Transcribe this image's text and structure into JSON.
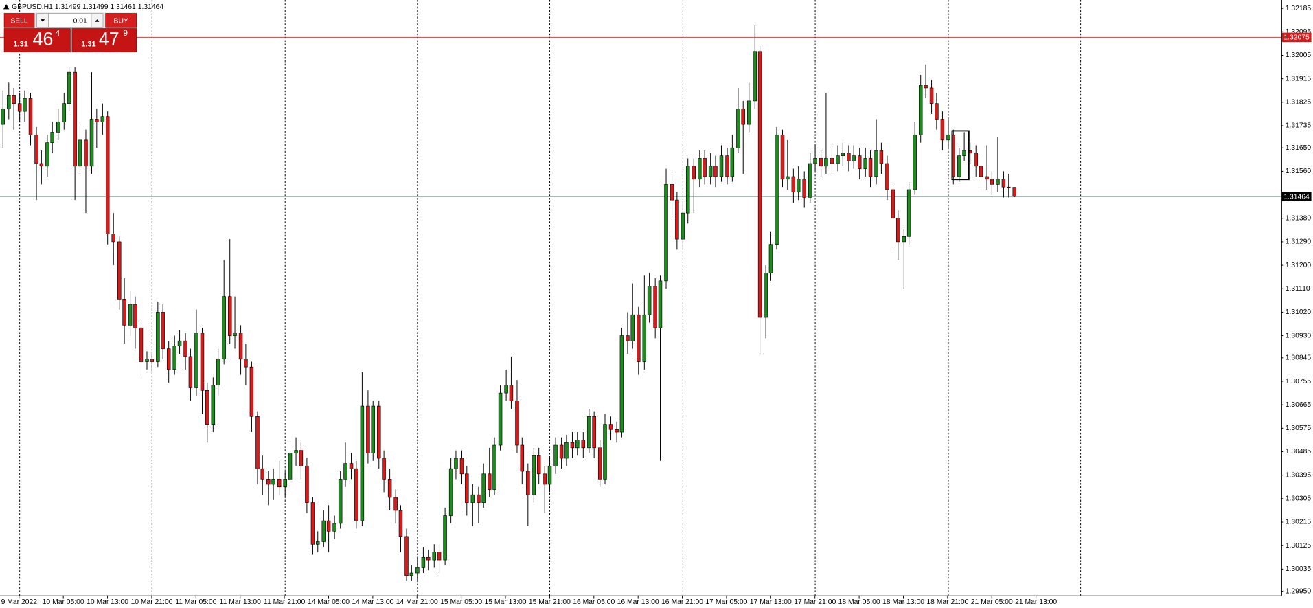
{
  "chart_data": {
    "type": "candlestick",
    "title": "GBPUSD,H1  1.31499 1.31499 1.31461 1.31464",
    "up_color": "#1f8a1f",
    "down_color": "#d41c1c",
    "outline_color": "#000000",
    "series": [
      {
        "name": "GBPUSD,H1",
        "open": [
          1.3174,
          1.318,
          1.3185,
          1.3182,
          1.3179,
          1.3184,
          1.317,
          1.3159,
          1.3158,
          1.3167,
          1.3171,
          1.3175,
          1.3182,
          1.3194,
          1.3158,
          1.3168,
          1.3158,
          1.3176,
          1.3175,
          1.3177,
          1.3132,
          1.3129,
          1.3107,
          1.3097,
          1.3105,
          1.3096,
          1.3083,
          1.3084,
          1.3083,
          1.3102,
          1.3088,
          1.308,
          1.3089,
          1.3091,
          1.3085,
          1.3073,
          1.3094,
          1.3072,
          1.3059,
          1.3074,
          1.3084,
          1.3108,
          1.3093,
          1.3094,
          1.3084,
          1.3081,
          1.3062,
          1.3042,
          1.3038,
          1.3036,
          1.3038,
          1.3035,
          1.3038,
          1.3048,
          1.3049,
          1.3043,
          1.3029,
          1.3013,
          1.3014,
          1.3022,
          1.3018,
          1.3021,
          1.3038,
          1.3044,
          1.3042,
          1.3022,
          1.3066,
          1.3048,
          1.3066,
          1.3046,
          1.3038,
          1.3031,
          1.3026,
          1.3016,
          1.3001,
          1.3002,
          1.3004,
          1.3008,
          1.3007,
          1.301,
          1.3007,
          1.3024,
          1.3042,
          1.3046,
          1.304,
          1.3029,
          1.3032,
          1.3029,
          1.304,
          1.3034,
          1.3051,
          1.3071,
          1.3074,
          1.3068,
          1.3051,
          1.3041,
          1.3032,
          1.3047,
          1.304,
          1.3036,
          1.3043,
          1.3051,
          1.3046,
          1.3052,
          1.305,
          1.3053,
          1.305,
          1.3062,
          1.305,
          1.3038,
          1.3059,
          1.3057,
          1.3056,
          1.3093,
          1.3091,
          1.3101,
          1.3083,
          1.3101,
          1.3112,
          1.3096,
          1.3114,
          1.3151,
          1.3145,
          1.313,
          1.314,
          1.3158,
          1.3153,
          1.3161,
          1.3154,
          1.3158,
          1.3154,
          1.3162,
          1.3154,
          1.3165,
          1.318,
          1.3174,
          1.3183,
          1.3202,
          1.31,
          1.3117,
          1.3128,
          1.317,
          1.3153,
          1.3154,
          1.3148,
          1.3153,
          1.3146,
          1.3159,
          1.3161,
          1.3158,
          1.3161,
          1.3159,
          1.3162,
          1.3163,
          1.316,
          1.3162,
          1.3157,
          1.3161,
          1.3154,
          1.3164,
          1.3159,
          1.3149,
          1.3138,
          1.3129,
          1.3131,
          1.3149,
          1.317,
          1.3189,
          1.3188,
          1.3182,
          1.3176,
          1.3168,
          1.317,
          1.3154,
          1.3162,
          1.3164,
          1.3163,
          1.3158,
          1.3154,
          1.3153,
          1.3151,
          1.3153,
          1.315,
          1.31499
        ],
        "high": [
          1.3187,
          1.319,
          1.3188,
          1.3186,
          1.3187,
          1.3186,
          1.3173,
          1.3164,
          1.317,
          1.3175,
          1.318,
          1.3186,
          1.3196,
          1.3196,
          1.3175,
          1.3172,
          1.3194,
          1.318,
          1.3182,
          1.3179,
          1.314,
          1.3131,
          1.3115,
          1.311,
          1.3108,
          1.3098,
          1.3087,
          1.3086,
          1.3106,
          1.3105,
          1.3091,
          1.3093,
          1.3095,
          1.3094,
          1.3088,
          1.3103,
          1.3096,
          1.3075,
          1.3077,
          1.3088,
          1.3122,
          1.313,
          1.3108,
          1.3097,
          1.309,
          1.3083,
          1.3064,
          1.3047,
          1.3041,
          1.3042,
          1.3045,
          1.3041,
          1.3052,
          1.3054,
          1.3052,
          1.3046,
          1.3031,
          1.3018,
          1.3026,
          1.3028,
          1.3024,
          1.3041,
          1.3052,
          1.3048,
          1.3045,
          1.3079,
          1.3072,
          1.3068,
          1.3068,
          1.3049,
          1.3042,
          1.3034,
          1.3028,
          1.3019,
          1.3005,
          1.3008,
          1.3012,
          1.3011,
          1.3013,
          1.3013,
          1.3027,
          1.3046,
          1.3049,
          1.3049,
          1.3043,
          1.3036,
          1.3035,
          1.3044,
          1.305,
          1.3054,
          1.3074,
          1.308,
          1.3085,
          1.3076,
          1.3054,
          1.3044,
          1.305,
          1.305,
          1.3043,
          1.3046,
          1.3054,
          1.3054,
          1.3055,
          1.3056,
          1.3056,
          1.3056,
          1.3065,
          1.3064,
          1.3053,
          1.3063,
          1.3062,
          1.306,
          1.3096,
          1.3102,
          1.3113,
          1.3104,
          1.3116,
          1.3117,
          1.3115,
          1.3116,
          1.3157,
          1.3155,
          1.3148,
          1.3144,
          1.3161,
          1.3161,
          1.3164,
          1.3164,
          1.3163,
          1.3162,
          1.3166,
          1.3165,
          1.317,
          1.3188,
          1.3183,
          1.319,
          1.3212,
          1.3204,
          1.312,
          1.3133,
          1.3173,
          1.3172,
          1.3168,
          1.3157,
          1.3158,
          1.3156,
          1.3163,
          1.3166,
          1.3164,
          1.3186,
          1.3165,
          1.3166,
          1.3167,
          1.3166,
          1.3166,
          1.3165,
          1.3165,
          1.3164,
          1.3176,
          1.3167,
          1.3162,
          1.3152,
          1.3141,
          1.3134,
          1.3152,
          1.3175,
          1.3193,
          1.3197,
          1.3191,
          1.3186,
          1.3179,
          1.3176,
          1.3172,
          1.3165,
          1.3171,
          1.3167,
          1.3166,
          1.3161,
          1.3166,
          1.3156,
          1.3169,
          1.3156,
          1.3155,
          1.31499
        ],
        "low": [
          1.3165,
          1.3176,
          1.3172,
          1.3175,
          1.3175,
          1.3166,
          1.3145,
          1.3151,
          1.3154,
          1.3163,
          1.3168,
          1.3172,
          1.3179,
          1.3145,
          1.3155,
          1.314,
          1.3155,
          1.3165,
          1.317,
          1.3128,
          1.312,
          1.3103,
          1.309,
          1.3093,
          1.3088,
          1.3078,
          1.308,
          1.3079,
          1.3081,
          1.3084,
          1.3075,
          1.3078,
          1.3086,
          1.308,
          1.3068,
          1.307,
          1.3063,
          1.3052,
          1.3056,
          1.307,
          1.3082,
          1.309,
          1.3088,
          1.3078,
          1.3074,
          1.3056,
          1.3036,
          1.3032,
          1.3028,
          1.303,
          1.3032,
          1.3031,
          1.3034,
          1.3043,
          1.3038,
          1.3025,
          1.3009,
          1.301,
          1.3012,
          1.301,
          1.3015,
          1.3019,
          1.3035,
          1.3038,
          1.3019,
          1.302,
          1.3044,
          1.3045,
          1.3042,
          1.3033,
          1.3026,
          1.3021,
          1.301,
          1.2999,
          1.2999,
          1.2999,
          1.3002,
          1.3003,
          1.3004,
          1.3002,
          1.3005,
          1.3021,
          1.3038,
          1.3036,
          1.3024,
          1.302,
          1.3021,
          1.3027,
          1.3031,
          1.3032,
          1.3049,
          1.3068,
          1.3065,
          1.3048,
          1.3036,
          1.302,
          1.3029,
          1.3036,
          1.3025,
          1.3033,
          1.304,
          1.3042,
          1.3043,
          1.3046,
          1.3047,
          1.3046,
          1.3048,
          1.3046,
          1.3035,
          1.3036,
          1.3053,
          1.3052,
          1.3054,
          1.3086,
          1.3088,
          1.3078,
          1.308,
          1.3098,
          1.3092,
          1.3045,
          1.3111,
          1.3138,
          1.3126,
          1.3126,
          1.3136,
          1.314,
          1.315,
          1.3151,
          1.3151,
          1.315,
          1.3152,
          1.3151,
          1.3152,
          1.3163,
          1.3155,
          1.3171,
          1.318,
          1.3086,
          1.3092,
          1.3114,
          1.3126,
          1.315,
          1.3149,
          1.3144,
          1.3145,
          1.3142,
          1.3144,
          1.3156,
          1.3154,
          1.3155,
          1.3155,
          1.3156,
          1.3158,
          1.3156,
          1.3157,
          1.3153,
          1.3154,
          1.315,
          1.3151,
          1.3155,
          1.3145,
          1.3126,
          1.3122,
          1.3111,
          1.3128,
          1.3147,
          1.3167,
          1.3184,
          1.3178,
          1.3172,
          1.3164,
          1.3165,
          1.3151,
          1.3152,
          1.316,
          1.3159,
          1.3154,
          1.315,
          1.3149,
          1.3147,
          1.3148,
          1.3146,
          1.3146,
          1.31461
        ],
        "close": [
          1.318,
          1.3185,
          1.3182,
          1.3179,
          1.3184,
          1.317,
          1.3159,
          1.3158,
          1.3167,
          1.3171,
          1.3175,
          1.3182,
          1.3194,
          1.3158,
          1.3168,
          1.3158,
          1.3176,
          1.3175,
          1.3177,
          1.3132,
          1.3129,
          1.3107,
          1.3097,
          1.3105,
          1.3096,
          1.3083,
          1.3084,
          1.3083,
          1.3102,
          1.3088,
          1.308,
          1.3089,
          1.3091,
          1.3085,
          1.3073,
          1.3094,
          1.3072,
          1.3059,
          1.3074,
          1.3084,
          1.3108,
          1.3093,
          1.3094,
          1.3084,
          1.3081,
          1.3062,
          1.3042,
          1.3038,
          1.3036,
          1.3038,
          1.3035,
          1.3038,
          1.3048,
          1.3049,
          1.3043,
          1.3029,
          1.3013,
          1.3014,
          1.3022,
          1.3018,
          1.3021,
          1.3038,
          1.3044,
          1.3042,
          1.3022,
          1.3066,
          1.3048,
          1.3066,
          1.3046,
          1.3038,
          1.3031,
          1.3026,
          1.3016,
          1.3001,
          1.3002,
          1.3004,
          1.3008,
          1.3007,
          1.301,
          1.3007,
          1.3024,
          1.3042,
          1.3046,
          1.304,
          1.3029,
          1.3032,
          1.3029,
          1.304,
          1.3034,
          1.3051,
          1.3071,
          1.3074,
          1.3068,
          1.3051,
          1.3041,
          1.3032,
          1.3047,
          1.304,
          1.3036,
          1.3043,
          1.3051,
          1.3046,
          1.3052,
          1.305,
          1.3053,
          1.305,
          1.3062,
          1.305,
          1.3038,
          1.3059,
          1.3057,
          1.3056,
          1.3093,
          1.3091,
          1.3101,
          1.3083,
          1.3101,
          1.3112,
          1.3096,
          1.3114,
          1.3151,
          1.3145,
          1.313,
          1.314,
          1.3158,
          1.3153,
          1.3161,
          1.3154,
          1.3158,
          1.3154,
          1.3162,
          1.3154,
          1.3165,
          1.318,
          1.3174,
          1.3183,
          1.3202,
          1.31,
          1.3117,
          1.3128,
          1.317,
          1.3153,
          1.3154,
          1.3148,
          1.3153,
          1.3146,
          1.3159,
          1.3161,
          1.3158,
          1.3161,
          1.3159,
          1.3162,
          1.3163,
          1.316,
          1.3162,
          1.3157,
          1.3161,
          1.3154,
          1.3164,
          1.3159,
          1.3149,
          1.3138,
          1.3129,
          1.3131,
          1.3149,
          1.317,
          1.3189,
          1.3188,
          1.3182,
          1.3176,
          1.3168,
          1.317,
          1.3154,
          1.3162,
          1.3164,
          1.3163,
          1.3158,
          1.3154,
          1.3153,
          1.3151,
          1.3153,
          1.315,
          1.31499,
          1.31464
        ]
      }
    ],
    "ylim": [
      1.29934,
      1.32217
    ],
    "yticks": [
      1.32185,
      1.32095,
      1.32005,
      1.31915,
      1.31825,
      1.31735,
      {
        "value": 1.3165,
        "label": "1.31650"
      },
      {
        "value": 1.3156,
        "label": "1.31560"
      },
      {
        "value": 1.3138,
        "label": "1.31380"
      },
      {
        "value": 1.3129,
        "label": "1.31290"
      },
      {
        "value": 1.312,
        "label": "1.31200"
      },
      {
        "value": 1.3111,
        "label": "1.31110"
      },
      {
        "value": 1.3102,
        "label": "1.31020"
      },
      {
        "value": 1.3093,
        "label": "1.30930"
      },
      1.30845,
      1.30755,
      1.30665,
      1.30575,
      1.30485,
      1.30395,
      1.30305,
      1.30215,
      1.30125,
      1.30035,
      {
        "value": 1.2995,
        "label": "1.29950"
      }
    ],
    "xticks": [
      {
        "value": 3,
        "label": "9 Mar 2022"
      },
      {
        "value": 11,
        "label": "10 Mar 05:00"
      },
      {
        "value": 19,
        "label": "10 Mar 13:00"
      },
      {
        "value": 27,
        "label": "10 Mar 21:00"
      },
      {
        "value": 35,
        "label": "11 Mar 05:00"
      },
      {
        "value": 43,
        "label": "11 Mar 13:00"
      },
      {
        "value": 51,
        "label": "11 Mar 21:00"
      },
      {
        "value": 59,
        "label": "14 Mar 05:00"
      },
      {
        "value": 67,
        "label": "14 Mar 13:00"
      },
      {
        "value": 75,
        "label": "14 Mar 21:00"
      },
      {
        "value": 83,
        "label": "15 Mar 05:00"
      },
      {
        "value": 91,
        "label": "15 Mar 13:00"
      },
      {
        "value": 99,
        "label": "15 Mar 21:00"
      },
      {
        "value": 107,
        "label": "16 Mar 05:00"
      },
      {
        "value": 115,
        "label": "16 Mar 13:00"
      },
      {
        "value": 123,
        "label": "16 Mar 21:00"
      },
      {
        "value": 131,
        "label": "17 Mar 05:00"
      },
      {
        "value": 139,
        "label": "17 Mar 13:00"
      },
      {
        "value": 147,
        "label": "17 Mar 21:00"
      },
      {
        "value": 155,
        "label": "18 Mar 05:00"
      },
      {
        "value": 163,
        "label": "18 Mar 13:00"
      },
      {
        "value": 171,
        "label": "18 Mar 21:00"
      },
      {
        "value": 179,
        "label": "21 Mar 05:00"
      },
      {
        "value": 187,
        "label": "21 Mar 13:00"
      }
    ],
    "xgrid": [
      3,
      27,
      51,
      75,
      99,
      123,
      147,
      171,
      195
    ],
    "levels": [
      {
        "value": 1.32075,
        "color": "#d41c1c"
      },
      {
        "value": 1.31464,
        "color": "#000000"
      }
    ]
  },
  "trade_panel": {
    "sell": "SELL",
    "buy": "BUY",
    "lot": "0.01",
    "sell_price": {
      "big": "1.31",
      "pips": "46",
      "point": "4"
    },
    "buy_price": {
      "big": "1.31",
      "pips": "47",
      "point": "9"
    }
  }
}
